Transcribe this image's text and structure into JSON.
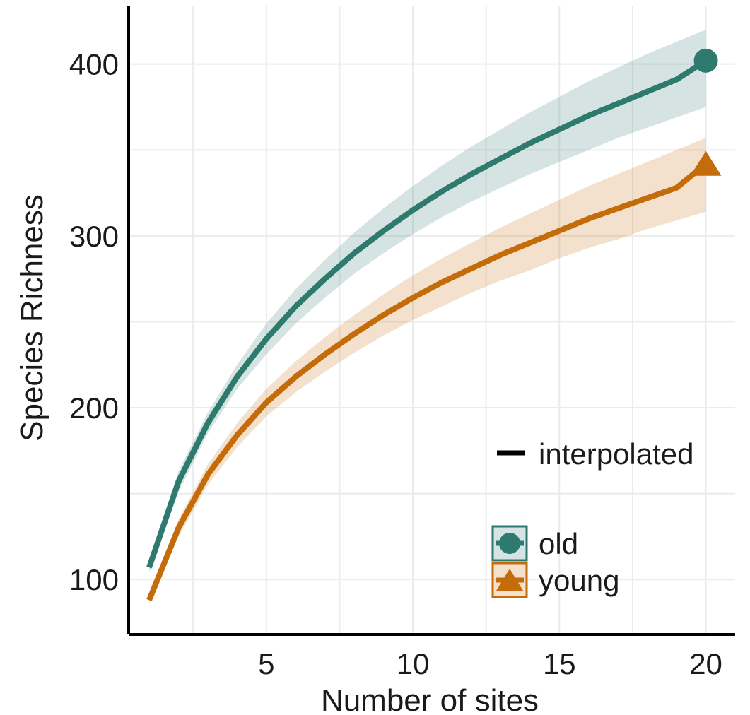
{
  "chart_data": {
    "type": "line",
    "title": "",
    "xlabel": "Number of sites",
    "ylabel": "Species Richness",
    "xlim": [
      0.3,
      21
    ],
    "ylim": [
      68,
      434
    ],
    "x_ticks": [
      5,
      10,
      15,
      20
    ],
    "y_ticks": [
      100,
      200,
      300,
      400
    ],
    "grid": true,
    "legend_position": "bottom-right",
    "line_type_legend": [
      "interpolated"
    ],
    "series": [
      {
        "name": "old",
        "color": "#2e7a6e",
        "marker": "circle",
        "x": [
          1,
          2,
          3,
          4,
          5,
          6,
          7,
          8,
          9,
          10,
          11,
          12,
          13,
          14,
          15,
          16,
          17,
          18,
          19,
          20
        ],
        "y": [
          107,
          157,
          191,
          218,
          240,
          259,
          275,
          290,
          303,
          315,
          326,
          336,
          345,
          354,
          362,
          370,
          377,
          384,
          391,
          402
        ],
        "lower": [
          104,
          151,
          185,
          211,
          231,
          249,
          264,
          278,
          290,
          301,
          311,
          320,
          328,
          336,
          343,
          350,
          357,
          363,
          369,
          375
        ],
        "upper": [
          110,
          163,
          197,
          225,
          249,
          269,
          286,
          302,
          316,
          329,
          341,
          352,
          362,
          372,
          381,
          390,
          398,
          406,
          413,
          420
        ]
      },
      {
        "name": "young",
        "color": "#c46b0a",
        "marker": "triangle",
        "x": [
          1,
          2,
          3,
          4,
          5,
          6,
          7,
          8,
          9,
          10,
          11,
          12,
          13,
          14,
          15,
          16,
          17,
          18,
          19,
          20
        ],
        "y": [
          88,
          130,
          161,
          184,
          203,
          218,
          231,
          243,
          254,
          264,
          273,
          281,
          289,
          296,
          303,
          310,
          316,
          322,
          328,
          342
        ],
        "lower": [
          86,
          125,
          155,
          177,
          195,
          209,
          221,
          232,
          242,
          251,
          259,
          267,
          274,
          280,
          287,
          293,
          298,
          304,
          309,
          314
        ],
        "upper": [
          90,
          135,
          167,
          191,
          211,
          227,
          241,
          254,
          266,
          277,
          287,
          296,
          305,
          313,
          321,
          329,
          336,
          343,
          350,
          357
        ]
      }
    ]
  }
}
